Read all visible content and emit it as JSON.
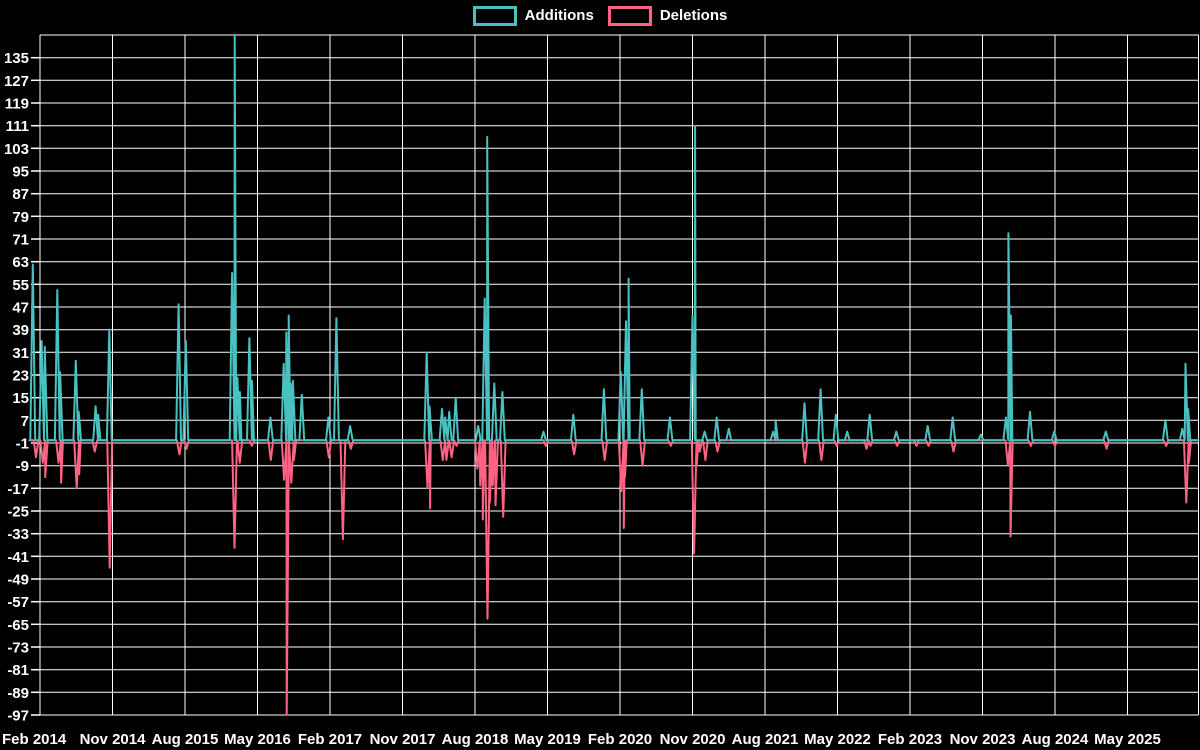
{
  "meta": {
    "background": "#000000",
    "grid_color": "#ffffff",
    "text_color": "#ffffff"
  },
  "chart_data": {
    "type": "line",
    "title": "",
    "xlabel": "",
    "ylabel": "",
    "description": "Spiky time-series of code additions (teal) and deletions (pink) per period, Chart.js style on black background",
    "legend_position": "top",
    "grid": true,
    "baseline": 0,
    "x_tick_labels": [
      "Feb 2014",
      "Nov 2014",
      "Aug 2015",
      "May 2016",
      "Feb 2017",
      "Nov 2017",
      "Aug 2018",
      "May 2019",
      "Feb 2020",
      "Nov 2020",
      "Aug 2021",
      "May 2022",
      "Feb 2023",
      "Nov 2023",
      "Aug 2024",
      "May 2025"
    ],
    "months_per_x_tick": 9,
    "y_ticks": [
      135,
      127,
      119,
      111,
      103,
      95,
      87,
      79,
      71,
      63,
      55,
      47,
      39,
      31,
      23,
      15,
      7,
      -1,
      -9,
      -17,
      -25,
      -33,
      -41,
      -49,
      -57,
      -65,
      -73,
      -81,
      -89,
      -97
    ],
    "ylim": [
      -97,
      143
    ],
    "xlim_months": [
      -1.3,
      143.8
    ],
    "series": [
      {
        "name": "Additions",
        "color": "#4bc0c0",
        "points": [
          [
            -0.9,
            62
          ],
          [
            0.2,
            35
          ],
          [
            0.6,
            33
          ],
          [
            2.15,
            53
          ],
          [
            2.5,
            24
          ],
          [
            4.45,
            28
          ],
          [
            4.8,
            10
          ],
          [
            6.9,
            12
          ],
          [
            7.2,
            9
          ],
          [
            8.6,
            39
          ],
          [
            17.2,
            48
          ],
          [
            18.1,
            35
          ],
          [
            23.85,
            59
          ],
          [
            24.05,
            143
          ],
          [
            24.5,
            22
          ],
          [
            24.7,
            17
          ],
          [
            26.0,
            36
          ],
          [
            26.25,
            21
          ],
          [
            28.6,
            8
          ],
          [
            30.25,
            27
          ],
          [
            30.55,
            38
          ],
          [
            30.8,
            44
          ],
          [
            31.0,
            20
          ],
          [
            31.4,
            21
          ],
          [
            32.5,
            16
          ],
          [
            35.8,
            8
          ],
          [
            36.8,
            43
          ],
          [
            38.5,
            5
          ],
          [
            48.0,
            31
          ],
          [
            48.35,
            12
          ],
          [
            49.9,
            11
          ],
          [
            50.3,
            8
          ],
          [
            50.8,
            10
          ],
          [
            51.6,
            15
          ],
          [
            54.4,
            5
          ],
          [
            55.2,
            50
          ],
          [
            55.45,
            107
          ],
          [
            56.4,
            20
          ],
          [
            57.4,
            17
          ],
          [
            62.5,
            3
          ],
          [
            66.2,
            9
          ],
          [
            70.0,
            18
          ],
          [
            72.1,
            24
          ],
          [
            72.75,
            42
          ],
          [
            72.9,
            57
          ],
          [
            74.7,
            18
          ],
          [
            78.2,
            8
          ],
          [
            81.0,
            44
          ],
          [
            81.1,
            111
          ],
          [
            82.5,
            3
          ],
          [
            84.0,
            8
          ],
          [
            85.5,
            4
          ],
          [
            91.0,
            3
          ],
          [
            91.3,
            7
          ],
          [
            94.9,
            13
          ],
          [
            96.9,
            18
          ],
          [
            98.8,
            9
          ],
          [
            100.2,
            3
          ],
          [
            103.0,
            9
          ],
          [
            106.3,
            3
          ],
          [
            110.2,
            5
          ],
          [
            113.3,
            8
          ],
          [
            116.8,
            2
          ],
          [
            119.9,
            8
          ],
          [
            120.2,
            73
          ],
          [
            120.4,
            44
          ],
          [
            122.9,
            10
          ],
          [
            125.9,
            3
          ],
          [
            132.3,
            3
          ],
          [
            139.7,
            7
          ],
          [
            141.8,
            4
          ],
          [
            142.2,
            27
          ],
          [
            142.5,
            11
          ]
        ]
      },
      {
        "name": "Deletions",
        "color": "#ff6384",
        "points": [
          [
            -0.5,
            -6
          ],
          [
            0.35,
            -8
          ],
          [
            0.65,
            -13
          ],
          [
            2.3,
            -8
          ],
          [
            2.55,
            -15
          ],
          [
            4.55,
            -17
          ],
          [
            4.75,
            -12
          ],
          [
            6.8,
            -4
          ],
          [
            8.65,
            -45
          ],
          [
            17.3,
            -5
          ],
          [
            18.2,
            -3
          ],
          [
            24.15,
            -38
          ],
          [
            24.8,
            -8
          ],
          [
            26.3,
            -2
          ],
          [
            28.65,
            -7
          ],
          [
            30.3,
            -14
          ],
          [
            30.6,
            -97
          ],
          [
            31.2,
            -15
          ],
          [
            31.5,
            -7
          ],
          [
            35.85,
            -6
          ],
          [
            37.6,
            -35
          ],
          [
            38.6,
            -3
          ],
          [
            48.1,
            -17
          ],
          [
            48.2,
            -24
          ],
          [
            50.0,
            -7
          ],
          [
            50.45,
            -7
          ],
          [
            51.1,
            -6
          ],
          [
            51.7,
            -2
          ],
          [
            54.3,
            -10
          ],
          [
            54.65,
            -16
          ],
          [
            54.85,
            -28
          ],
          [
            55.55,
            -63
          ],
          [
            55.85,
            -22
          ],
          [
            56.2,
            -16
          ],
          [
            56.55,
            -23
          ],
          [
            57.5,
            -27
          ],
          [
            62.8,
            -2
          ],
          [
            66.3,
            -5
          ],
          [
            70.1,
            -7
          ],
          [
            72.15,
            -18
          ],
          [
            72.3,
            -31
          ],
          [
            72.55,
            -13
          ],
          [
            74.8,
            -9
          ],
          [
            78.3,
            -2
          ],
          [
            81.2,
            -40
          ],
          [
            81.45,
            -9
          ],
          [
            81.9,
            -4
          ],
          [
            82.6,
            -7
          ],
          [
            84.1,
            -4
          ],
          [
            94.95,
            -8
          ],
          [
            97.0,
            -7
          ],
          [
            98.9,
            -2
          ],
          [
            102.6,
            -3
          ],
          [
            103.1,
            -2
          ],
          [
            106.4,
            -2
          ],
          [
            108.8,
            -2
          ],
          [
            110.3,
            -2
          ],
          [
            113.4,
            -4
          ],
          [
            120.15,
            -9
          ],
          [
            120.45,
            -34
          ],
          [
            123.0,
            -2
          ],
          [
            126.0,
            -2
          ],
          [
            132.4,
            -3
          ],
          [
            139.8,
            -2
          ],
          [
            142.3,
            -22
          ],
          [
            142.6,
            -8
          ]
        ]
      }
    ]
  }
}
